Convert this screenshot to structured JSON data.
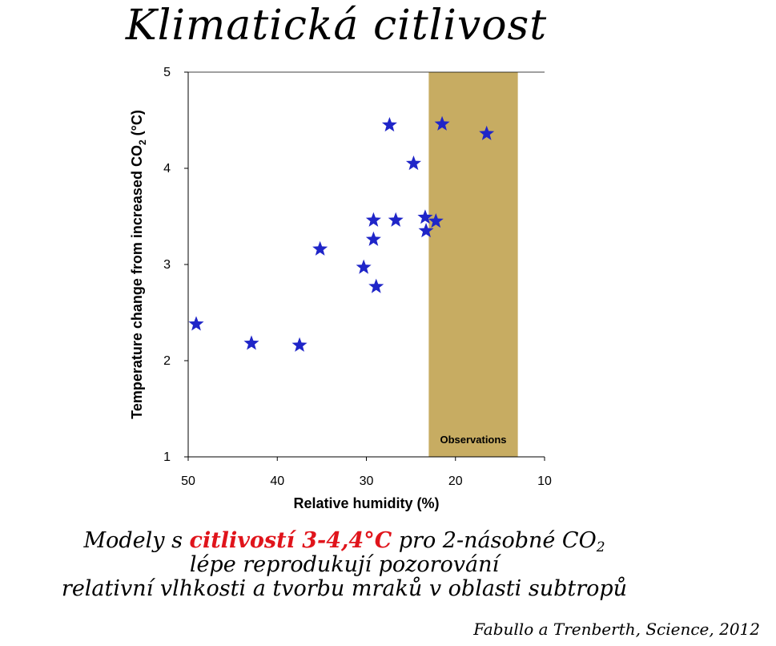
{
  "title": "Klimatická citlivost",
  "chart_data": {
    "type": "scatter",
    "xlabel": "Relative humidity (%)",
    "ylabel_main": "Temperature change from increased CO",
    "ylabel_sub": "2",
    "ylabel_tail": " (°C)",
    "xlim": [
      50,
      10
    ],
    "ylim": [
      1,
      5
    ],
    "x_reversed": true,
    "x_ticks": [
      50,
      40,
      30,
      20,
      10
    ],
    "y_ticks": [
      1,
      2,
      3,
      4,
      5
    ],
    "grid": false,
    "marker": "star",
    "marker_color": "#1f25c8",
    "points": [
      {
        "x": 49.1,
        "y": 2.38
      },
      {
        "x": 42.9,
        "y": 2.18
      },
      {
        "x": 37.5,
        "y": 2.16
      },
      {
        "x": 35.2,
        "y": 3.16
      },
      {
        "x": 30.3,
        "y": 2.97
      },
      {
        "x": 29.2,
        "y": 3.26
      },
      {
        "x": 29.2,
        "y": 3.46
      },
      {
        "x": 28.9,
        "y": 2.77
      },
      {
        "x": 27.4,
        "y": 4.45
      },
      {
        "x": 26.7,
        "y": 3.46
      },
      {
        "x": 24.7,
        "y": 4.05
      },
      {
        "x": 23.4,
        "y": 3.49
      },
      {
        "x": 23.3,
        "y": 3.35
      },
      {
        "x": 22.2,
        "y": 3.45
      },
      {
        "x": 21.5,
        "y": 4.46
      },
      {
        "x": 16.5,
        "y": 4.36
      }
    ],
    "band": {
      "label": "Observations",
      "x_from": 23,
      "x_to": 13,
      "color": "#c7ac62"
    }
  },
  "caption": {
    "line1_pre": "Modely s ",
    "line1_highlight": "citlivostí 3-4,4°C",
    "line1_post": " pro 2-násobné CO",
    "line1_sub": "2",
    "line2": "lépe reprodukují pozorování",
    "line3": "relativní vlhkosti a tvorbu mraků v oblasti subtropů"
  },
  "citation": "Fabullo a Trenberth, Science, 2012"
}
